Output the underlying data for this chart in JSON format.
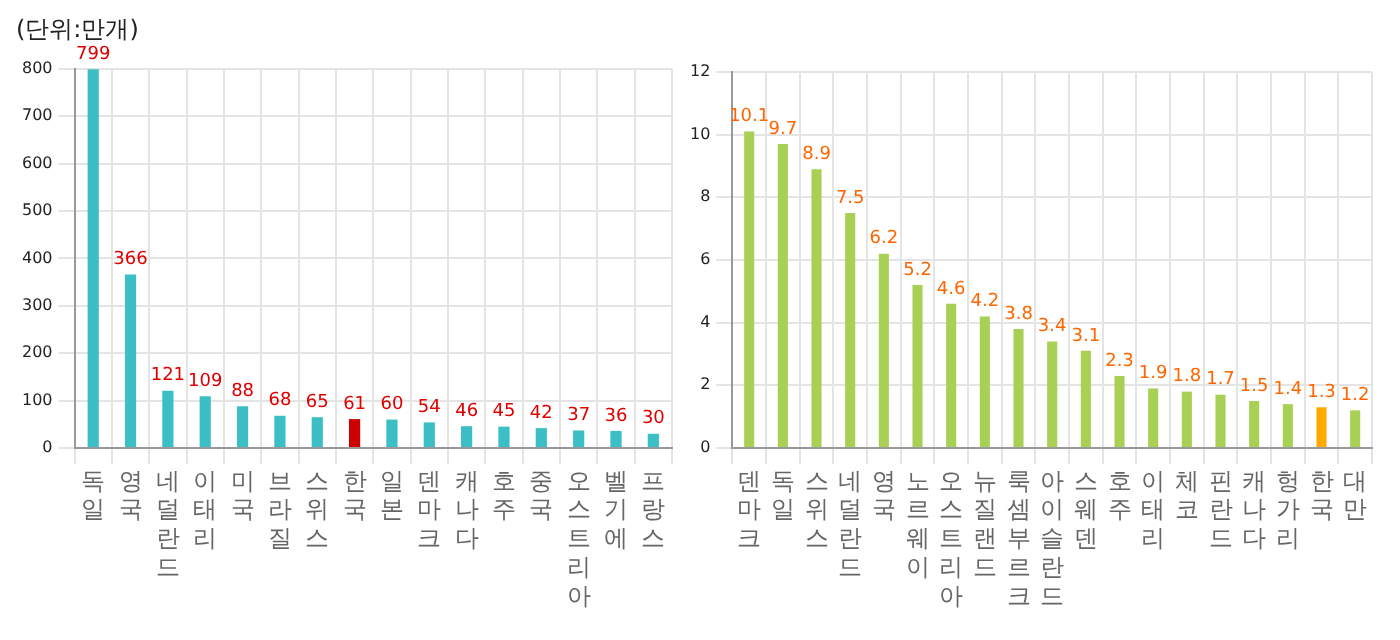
{
  "chart_data": [
    {
      "type": "bar",
      "title": "(단위:만개)",
      "categories": [
        "독일",
        "영국",
        "네덜란드",
        "이태리",
        "미국",
        "브라질",
        "스위스",
        "한국",
        "일본",
        "덴마크",
        "캐나다",
        "호주",
        "중국",
        "오스트리아",
        "벨기에",
        "프랑스"
      ],
      "values": [
        799,
        366,
        121,
        109,
        88,
        68,
        65,
        61,
        60,
        54,
        46,
        45,
        42,
        37,
        36,
        30
      ],
      "colors": [
        "#3bbfc4",
        "#3bbfc4",
        "#3bbfc4",
        "#3bbfc4",
        "#3bbfc4",
        "#3bbfc4",
        "#3bbfc4",
        "#cc0000",
        "#3bbfc4",
        "#3bbfc4",
        "#3bbfc4",
        "#3bbfc4",
        "#3bbfc4",
        "#3bbfc4",
        "#3bbfc4",
        "#3bbfc4"
      ],
      "ylim": [
        0,
        800
      ],
      "yticks": [
        0,
        100,
        200,
        300,
        400,
        500,
        600,
        700,
        800
      ],
      "grid": true,
      "legend": false,
      "data_labels": true
    },
    {
      "type": "bar",
      "categories": [
        "덴마크",
        "독일",
        "스위스",
        "네덜란드",
        "영국",
        "노르웨이",
        "오스트리아",
        "뉴질랜드",
        "룩셈부르크",
        "아이슬란드",
        "스웨덴",
        "호주",
        "이태리",
        "체코",
        "핀란드",
        "캐나다",
        "헝가리",
        "한국",
        "대만"
      ],
      "values": [
        10.1,
        9.7,
        8.9,
        7.5,
        6.2,
        5.2,
        4.6,
        4.2,
        3.8,
        3.4,
        3.1,
        2.3,
        1.9,
        1.8,
        1.7,
        1.5,
        1.4,
        1.3,
        1.2
      ],
      "colors": [
        "#a8d055",
        "#a8d055",
        "#a8d055",
        "#a8d055",
        "#a8d055",
        "#a8d055",
        "#a8d055",
        "#a8d055",
        "#a8d055",
        "#a8d055",
        "#a8d055",
        "#a8d055",
        "#a8d055",
        "#a8d055",
        "#a8d055",
        "#a8d055",
        "#a8d055",
        "#ffaa00",
        "#a8d055"
      ],
      "ylim": [
        0,
        12
      ],
      "yticks": [
        0,
        2,
        4,
        6,
        8,
        10,
        12
      ],
      "grid": true,
      "legend": false,
      "data_labels": true
    }
  ]
}
